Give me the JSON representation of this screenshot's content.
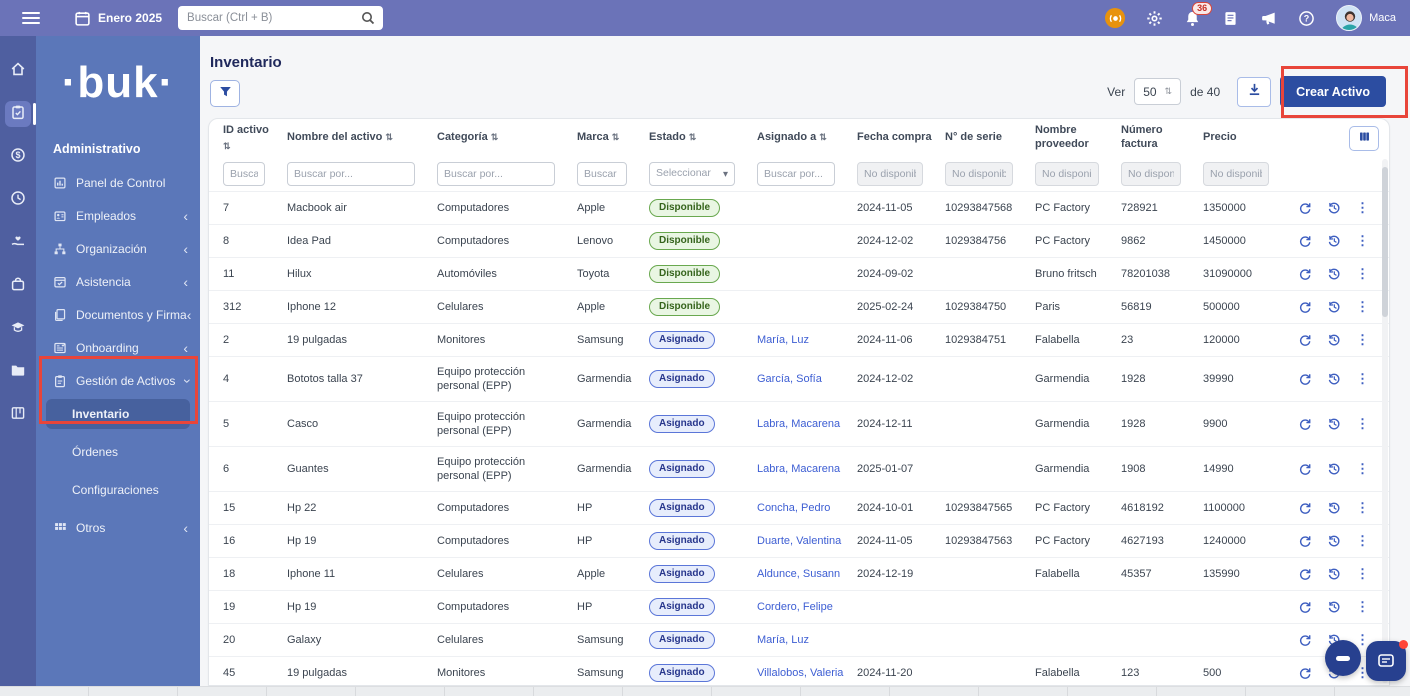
{
  "topbar": {
    "date_label": "Enero 2025",
    "search_placeholder": "Buscar (Ctrl + B)",
    "notification_count": "36",
    "user_name": "Maca",
    "right_icons": [
      {
        "icon": "record-icon",
        "accent": "orange"
      },
      {
        "icon": "gear-icon"
      },
      {
        "icon": "bell-icon",
        "badge": "36"
      },
      {
        "icon": "document-icon"
      },
      {
        "icon": "megaphone-icon"
      },
      {
        "icon": "help-icon"
      }
    ]
  },
  "sidebar": {
    "logo": "·buk·",
    "section_label": "Administrativo",
    "rail": [
      {
        "icon": "home-icon"
      },
      {
        "icon": "clipboard-icon",
        "active": true
      },
      {
        "icon": "coin-icon"
      },
      {
        "icon": "clock-icon"
      },
      {
        "icon": "hand-heart-icon"
      },
      {
        "icon": "bag-icon"
      },
      {
        "icon": "graduation-cap-icon"
      },
      {
        "icon": "folder-icon"
      },
      {
        "icon": "kanban-icon"
      }
    ],
    "items": [
      {
        "icon": "dashboard-icon",
        "label": "Panel de Control",
        "chevron": "none"
      },
      {
        "icon": "employees-icon",
        "label": "Empleados",
        "chevron": "collapsed"
      },
      {
        "icon": "org-icon",
        "label": "Organización",
        "chevron": "collapsed"
      },
      {
        "icon": "calendar-check-icon",
        "label": "Asistencia",
        "chevron": "collapsed"
      },
      {
        "icon": "docs-icon",
        "label": "Documentos y Firma",
        "chevron": "collapsed"
      },
      {
        "icon": "onboarding-icon",
        "label": "Onboarding",
        "chevron": "collapsed"
      },
      {
        "icon": "assets-icon",
        "label": "Gestión de Activos",
        "chevron": "expanded"
      }
    ],
    "subitems": [
      {
        "label": "Inventario",
        "active": true
      },
      {
        "label": "Órdenes"
      },
      {
        "label": "Configuraciones"
      }
    ],
    "after_items": [
      {
        "icon": "grid-icon",
        "label": "Otros",
        "chevron": "collapsed"
      }
    ]
  },
  "page": {
    "title": "Inventario",
    "ver_label": "Ver",
    "page_size": "50",
    "total_label": "de 40",
    "create_button": "Crear Activo"
  },
  "table": {
    "columns": [
      {
        "label": "ID activo",
        "sortable": true,
        "filter_type": "input",
        "filter_placeholder": "Buscar por"
      },
      {
        "label": "Nombre del activo",
        "sortable": true,
        "filter_type": "input",
        "filter_placeholder": "Buscar por..."
      },
      {
        "label": "Categoría",
        "sortable": true,
        "filter_type": "input",
        "filter_placeholder": "Buscar por..."
      },
      {
        "label": "Marca",
        "sortable": true,
        "filter_type": "input",
        "filter_placeholder": "Buscar por"
      },
      {
        "label": "Estado",
        "sortable": true,
        "filter_type": "select",
        "filter_placeholder": "Seleccionar"
      },
      {
        "label": "Asignado a",
        "sortable": true,
        "filter_type": "input",
        "filter_placeholder": "Buscar por..."
      },
      {
        "label": "Fecha compra",
        "sortable": false,
        "filter_type": "disabled",
        "filter_placeholder": "No disponible"
      },
      {
        "label": "N° de serie",
        "sortable": false,
        "filter_type": "disabled",
        "filter_placeholder": "No disponible"
      },
      {
        "label": "Nombre proveedor",
        "sortable": false,
        "filter_type": "disabled",
        "filter_placeholder": "No disponible"
      },
      {
        "label": "Número factura",
        "sortable": false,
        "filter_type": "disabled",
        "filter_placeholder": "No disponible"
      },
      {
        "label": "Precio",
        "sortable": false,
        "filter_type": "disabled",
        "filter_placeholder": "No disponible"
      },
      {
        "label": "",
        "sortable": false,
        "filter_type": "none",
        "filter_placeholder": ""
      }
    ],
    "action_icons": [
      "sync-icon",
      "history-icon",
      "kebab-icon"
    ],
    "estado_styles": {
      "Disponible": {
        "bg": "#e9f6e3",
        "border": "#69a84f",
        "text": "#35641c"
      },
      "Asignado": {
        "bg": "#e7edfc",
        "border": "#5b76d8",
        "text": "#27368c"
      }
    },
    "rows": [
      {
        "id": "7",
        "nombre": "Macbook air",
        "categoria": "Computadores",
        "marca": "Apple",
        "estado": "Disponible",
        "asignado": "",
        "fecha": "2024-11-05",
        "serie": "10293847568",
        "proveedor": "PC Factory",
        "factura": "728921",
        "precio": "1350000"
      },
      {
        "id": "8",
        "nombre": "Idea Pad",
        "categoria": "Computadores",
        "marca": "Lenovo",
        "estado": "Disponible",
        "asignado": "",
        "fecha": "2024-12-02",
        "serie": "1029384756",
        "proveedor": "PC Factory",
        "factura": "9862",
        "precio": "1450000"
      },
      {
        "id": "11",
        "nombre": "Hilux",
        "categoria": "Automóviles",
        "marca": "Toyota",
        "estado": "Disponible",
        "asignado": "",
        "fecha": "2024-09-02",
        "serie": "",
        "proveedor": "Bruno fritsch",
        "factura": "78201038",
        "precio": "31090000"
      },
      {
        "id": "312",
        "nombre": "Iphone 12",
        "categoria": "Celulares",
        "marca": "Apple",
        "estado": "Disponible",
        "asignado": "",
        "fecha": "2025-02-24",
        "serie": "1029384750",
        "proveedor": "Paris",
        "factura": "56819",
        "precio": "500000"
      },
      {
        "id": "2",
        "nombre": "19 pulgadas",
        "categoria": "Monitores",
        "marca": "Samsung",
        "estado": "Asignado",
        "asignado": "María, Luz",
        "fecha": "2024-11-06",
        "serie": "1029384751",
        "proveedor": "Falabella",
        "factura": "23",
        "precio": "120000"
      },
      {
        "id": "4",
        "nombre": "Bototos talla 37",
        "categoria": "Equipo protección personal (EPP)",
        "marca": "Garmendia",
        "estado": "Asignado",
        "asignado": "García, Sofía",
        "fecha": "2024-12-02",
        "serie": "",
        "proveedor": "Garmendia",
        "factura": "1928",
        "precio": "39990",
        "tall": true
      },
      {
        "id": "5",
        "nombre": "Casco",
        "categoria": "Equipo protección personal (EPP)",
        "marca": "Garmendia",
        "estado": "Asignado",
        "asignado": "Labra, Macarena",
        "fecha": "2024-12-11",
        "serie": "",
        "proveedor": "Garmendia",
        "factura": "1928",
        "precio": "9900",
        "tall": true
      },
      {
        "id": "6",
        "nombre": "Guantes",
        "categoria": "Equipo protección personal (EPP)",
        "marca": "Garmendia",
        "estado": "Asignado",
        "asignado": "Labra, Macarena",
        "fecha": "2025-01-07",
        "serie": "",
        "proveedor": "Garmendia",
        "factura": "1908",
        "precio": "14990",
        "tall": true
      },
      {
        "id": "15",
        "nombre": "Hp 22",
        "categoria": "Computadores",
        "marca": "HP",
        "estado": "Asignado",
        "asignado": "Concha, Pedro",
        "fecha": "2024-10-01",
        "serie": "10293847565",
        "proveedor": "PC Factory",
        "factura": "4618192",
        "precio": "1100000"
      },
      {
        "id": "16",
        "nombre": "Hp 19",
        "categoria": "Computadores",
        "marca": "HP",
        "estado": "Asignado",
        "asignado": "Duarte, Valentina",
        "fecha": "2024-11-05",
        "serie": "10293847563",
        "proveedor": "PC Factory",
        "factura": "4627193",
        "precio": "1240000"
      },
      {
        "id": "18",
        "nombre": "Iphone 11",
        "categoria": "Celulares",
        "marca": "Apple",
        "estado": "Asignado",
        "asignado": "Aldunce, Susann",
        "fecha": "2024-12-19",
        "serie": "",
        "proveedor": "Falabella",
        "factura": "45357",
        "precio": "135990"
      },
      {
        "id": "19",
        "nombre": "Hp 19",
        "categoria": "Computadores",
        "marca": "HP",
        "estado": "Asignado",
        "asignado": "Cordero, Felipe",
        "fecha": "",
        "serie": "",
        "proveedor": "",
        "factura": "",
        "precio": ""
      },
      {
        "id": "20",
        "nombre": "Galaxy",
        "categoria": "Celulares",
        "marca": "Samsung",
        "estado": "Asignado",
        "asignado": "María, Luz",
        "fecha": "",
        "serie": "",
        "proveedor": "",
        "factura": "",
        "precio": ""
      },
      {
        "id": "45",
        "nombre": "19 pulgadas",
        "categoria": "Monitores",
        "marca": "Samsung",
        "estado": "Asignado",
        "asignado": "Villalobos, Valeria",
        "fecha": "2024-11-20",
        "serie": "",
        "proveedor": "Falabella",
        "factura": "123",
        "precio": "500"
      }
    ]
  },
  "colors": {
    "topbar_bg": "#6b73b8",
    "rail_bg": "#4f5fa0",
    "sidebar_bg": "#5b77b9",
    "primary_button": "#2c4da1",
    "link": "#3d5ed3",
    "annotation": "#e8453a"
  }
}
